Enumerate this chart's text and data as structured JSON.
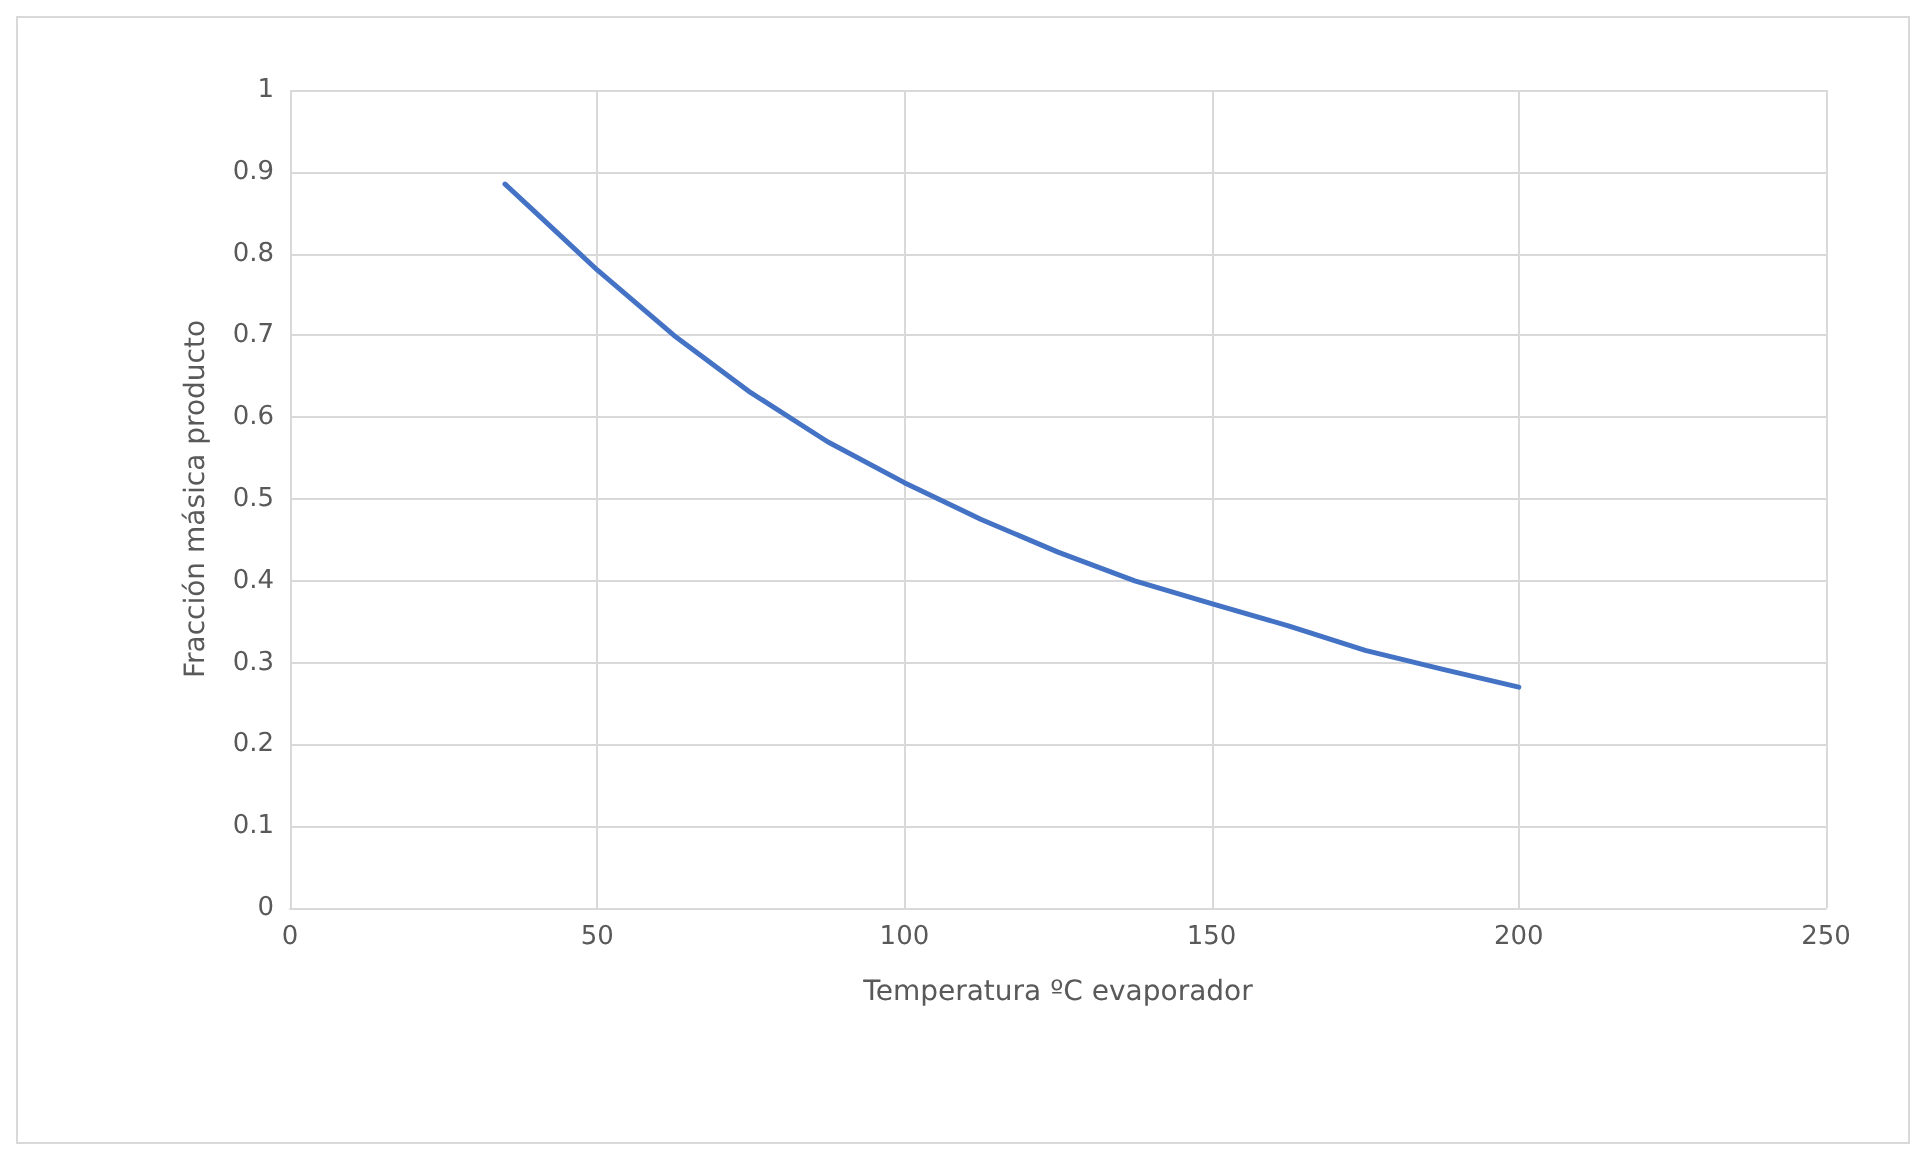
{
  "chart_data": {
    "type": "line",
    "xlabel": "Temperatura ºC evaporador",
    "ylabel": "Fracción másica producto",
    "x": [
      35,
      40,
      50,
      62.5,
      75,
      87.5,
      100,
      112.5,
      125,
      137.5,
      150,
      162.5,
      175,
      187.5,
      200
    ],
    "series": [
      {
        "color": "#4472c4",
        "values": [
          0.885,
          0.85,
          0.78,
          0.7,
          0.63,
          0.57,
          0.52,
          0.475,
          0.435,
          0.4,
          0.372,
          0.345,
          0.315,
          0.292,
          0.27
        ]
      }
    ],
    "xlim": [
      0,
      250
    ],
    "xticks": [
      0,
      50,
      100,
      150,
      200,
      250
    ],
    "ylim": [
      0,
      1
    ],
    "yticks": [
      0,
      0.1,
      0.2,
      0.3,
      0.4,
      0.5,
      0.6,
      0.7,
      0.8,
      0.9,
      1
    ],
    "grid": true,
    "marker": "none",
    "line_style": "solid"
  }
}
